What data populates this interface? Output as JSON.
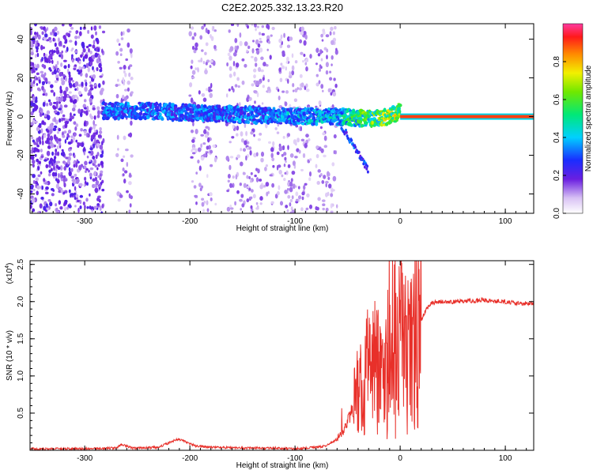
{
  "page_title": "C2E2.2025.332.13.23.R20",
  "chart_data": [
    {
      "type": "heatmap",
      "xlabel": "Height of straight line (km)",
      "ylabel": "Frequency (Hz)",
      "xlim": [
        -352,
        127
      ],
      "ylim": [
        -50,
        48
      ],
      "x_ticks": [
        -300,
        -200,
        -100,
        0,
        100
      ],
      "y_ticks": [
        -40,
        -20,
        0,
        20,
        40
      ],
      "colorbar": {
        "label": "Normalized spectral amplitude",
        "range": [
          0,
          1
        ],
        "ticks": [
          "0.0",
          "0.2",
          "0.4",
          "0.6",
          "0.8"
        ],
        "tick_values": [
          0.0,
          0.2,
          0.4,
          0.6,
          0.8
        ]
      },
      "ridge": {
        "points": [
          [
            -282,
            3
          ],
          [
            -250,
            3
          ],
          [
            -200,
            2
          ],
          [
            -150,
            1
          ],
          [
            -100,
            0
          ],
          [
            -60,
            0
          ],
          [
            -40,
            -1
          ],
          [
            -20,
            -1
          ],
          [
            -5,
            1
          ],
          [
            0,
            3
          ],
          [
            10,
            0
          ],
          [
            127,
            0
          ]
        ],
        "amplitude": [
          [
            -282,
            0.35
          ],
          [
            -150,
            0.35
          ],
          [
            -60,
            0.45
          ],
          [
            -25,
            0.65
          ],
          [
            -5,
            0.7
          ],
          [
            5,
            0.85
          ],
          [
            127,
            0.9
          ]
        ]
      },
      "noise_bands_km": [
        [
          -352,
          -282
        ],
        [
          -270,
          -255
        ],
        [
          -200,
          -175
        ],
        [
          -165,
          -120
        ],
        [
          -118,
          -85
        ],
        [
          -80,
          -60
        ]
      ]
    },
    {
      "type": "line",
      "xlabel": "Height of straight line (km)",
      "ylabel": "SNR (10 * v/v)",
      "y_multiplier": "(x10",
      "y_multiplier_exp": "4",
      "xlim": [
        -352,
        127
      ],
      "ylim": [
        0,
        2.55
      ],
      "x_ticks": [
        -300,
        -200,
        -100,
        0,
        100
      ],
      "y_ticks": [
        "0.5",
        "1.0",
        "1.5",
        "2.0",
        "2.5"
      ],
      "y_tick_values": [
        0.5,
        1.0,
        1.5,
        2.0,
        2.5
      ],
      "line_color": "#e8302a",
      "series": [
        {
          "x": [
            -352,
            -300,
            -270,
            -265,
            -255,
            -230,
            -220,
            -212,
            -205,
            -195,
            -180,
            -150,
            -120,
            -100,
            -80,
            -70,
            -60,
            -52,
            -45,
            -40,
            -35,
            -30,
            -25,
            -20,
            -15,
            -10,
            -5,
            0,
            5,
            10,
            13,
            16,
            20,
            25,
            30,
            40,
            50,
            60,
            70,
            80,
            90,
            100,
            110,
            127
          ],
          "y": [
            0.02,
            0.02,
            0.03,
            0.08,
            0.03,
            0.04,
            0.1,
            0.15,
            0.12,
            0.06,
            0.04,
            0.03,
            0.03,
            0.02,
            0.04,
            0.06,
            0.15,
            0.3,
            0.55,
            0.75,
            0.9,
            1.0,
            1.05,
            1.1,
            1.2,
            1.3,
            1.4,
            1.45,
            1.4,
            1.35,
            1.45,
            1.55,
            1.75,
            1.9,
            1.98,
            2.0,
            2.0,
            2.0,
            2.01,
            2.02,
            2.0,
            2.0,
            1.98,
            1.97
          ]
        }
      ]
    }
  ]
}
